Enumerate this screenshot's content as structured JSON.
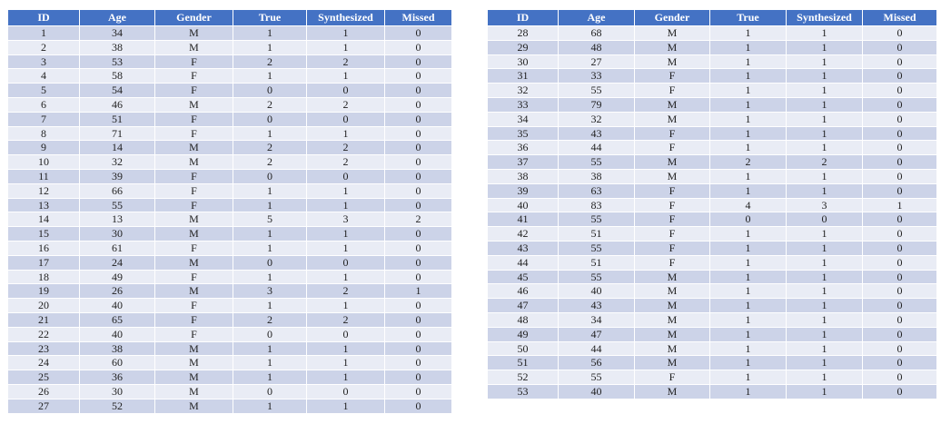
{
  "colors": {
    "page_bg": "#ffffff",
    "header_bg": "#4472c4",
    "header_text": "#ffffff",
    "row_dark": "#ccd3e8",
    "row_light": "#e9ecf5",
    "separator": "#ffffff",
    "cell_text": "#1f1f1f"
  },
  "chart_data": [
    {
      "type": "table",
      "title": "",
      "columns": [
        "ID",
        "Age",
        "Gender",
        "True",
        "Synthesized",
        "Missed"
      ],
      "banding_start": "dark",
      "rows": [
        [
          1,
          34,
          "M",
          1,
          1,
          0
        ],
        [
          2,
          38,
          "M",
          1,
          1,
          0
        ],
        [
          3,
          53,
          "F",
          2,
          2,
          0
        ],
        [
          4,
          58,
          "F",
          1,
          1,
          0
        ],
        [
          5,
          54,
          "F",
          0,
          0,
          0
        ],
        [
          6,
          46,
          "M",
          2,
          2,
          0
        ],
        [
          7,
          51,
          "F",
          0,
          0,
          0
        ],
        [
          8,
          71,
          "F",
          1,
          1,
          0
        ],
        [
          9,
          14,
          "M",
          2,
          2,
          0
        ],
        [
          10,
          32,
          "M",
          2,
          2,
          0
        ],
        [
          11,
          39,
          "F",
          0,
          0,
          0
        ],
        [
          12,
          66,
          "F",
          1,
          1,
          0
        ],
        [
          13,
          55,
          "F",
          1,
          1,
          0
        ],
        [
          14,
          13,
          "M",
          5,
          3,
          2
        ],
        [
          15,
          30,
          "M",
          1,
          1,
          0
        ],
        [
          16,
          61,
          "F",
          1,
          1,
          0
        ],
        [
          17,
          24,
          "M",
          0,
          0,
          0
        ],
        [
          18,
          49,
          "F",
          1,
          1,
          0
        ],
        [
          19,
          26,
          "M",
          3,
          2,
          1
        ],
        [
          20,
          40,
          "F",
          1,
          1,
          0
        ],
        [
          21,
          65,
          "F",
          2,
          2,
          0
        ],
        [
          22,
          40,
          "F",
          0,
          0,
          0
        ],
        [
          23,
          38,
          "M",
          1,
          1,
          0
        ],
        [
          24,
          60,
          "M",
          1,
          1,
          0
        ],
        [
          25,
          36,
          "M",
          1,
          1,
          0
        ],
        [
          26,
          30,
          "M",
          0,
          0,
          0
        ],
        [
          27,
          52,
          "M",
          1,
          1,
          0
        ]
      ]
    },
    {
      "type": "table",
      "title": "",
      "columns": [
        "ID",
        "Age",
        "Gender",
        "True",
        "Synthesized",
        "Missed"
      ],
      "banding_start": "light",
      "rows": [
        [
          28,
          68,
          "M",
          1,
          1,
          0
        ],
        [
          29,
          48,
          "M",
          1,
          1,
          0
        ],
        [
          30,
          27,
          "M",
          1,
          1,
          0
        ],
        [
          31,
          33,
          "F",
          1,
          1,
          0
        ],
        [
          32,
          55,
          "F",
          1,
          1,
          0
        ],
        [
          33,
          79,
          "M",
          1,
          1,
          0
        ],
        [
          34,
          32,
          "M",
          1,
          1,
          0
        ],
        [
          35,
          43,
          "F",
          1,
          1,
          0
        ],
        [
          36,
          44,
          "F",
          1,
          1,
          0
        ],
        [
          37,
          55,
          "M",
          2,
          2,
          0
        ],
        [
          38,
          38,
          "M",
          1,
          1,
          0
        ],
        [
          39,
          63,
          "F",
          1,
          1,
          0
        ],
        [
          40,
          83,
          "F",
          4,
          3,
          1
        ],
        [
          41,
          55,
          "F",
          0,
          0,
          0
        ],
        [
          42,
          51,
          "F",
          1,
          1,
          0
        ],
        [
          43,
          55,
          "F",
          1,
          1,
          0
        ],
        [
          44,
          51,
          "F",
          1,
          1,
          0
        ],
        [
          45,
          55,
          "M",
          1,
          1,
          0
        ],
        [
          46,
          40,
          "M",
          1,
          1,
          0
        ],
        [
          47,
          43,
          "M",
          1,
          1,
          0
        ],
        [
          48,
          34,
          "M",
          1,
          1,
          0
        ],
        [
          49,
          47,
          "M",
          1,
          1,
          0
        ],
        [
          50,
          44,
          "M",
          1,
          1,
          0
        ],
        [
          51,
          56,
          "M",
          1,
          1,
          0
        ],
        [
          52,
          55,
          "F",
          1,
          1,
          0
        ],
        [
          53,
          40,
          "M",
          1,
          1,
          0
        ]
      ]
    }
  ]
}
